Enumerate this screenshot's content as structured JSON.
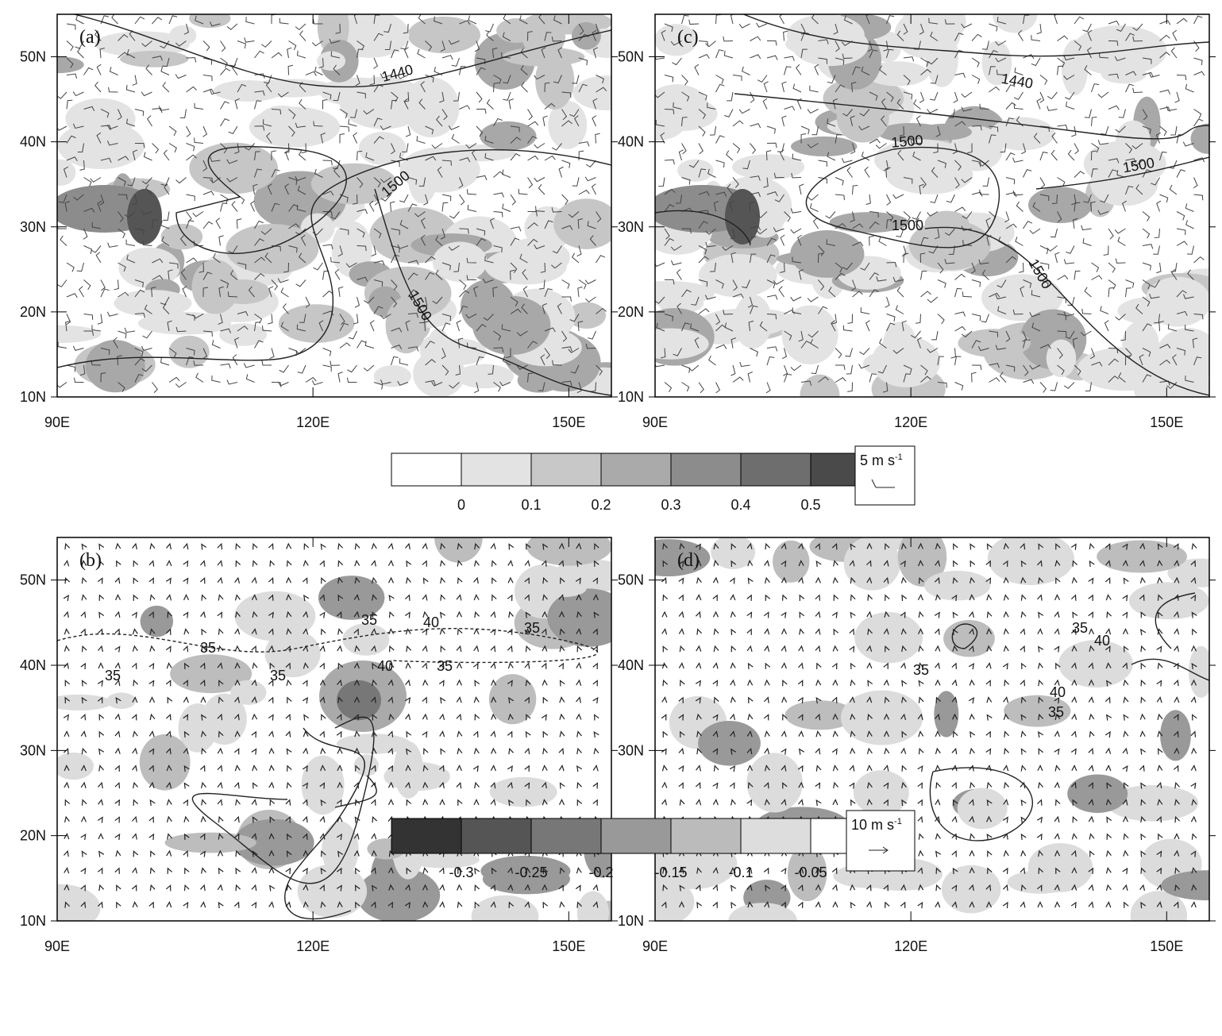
{
  "axes": {
    "xlim": [
      90,
      155
    ],
    "ylim": [
      10,
      55
    ],
    "xticks": [
      {
        "value": 90,
        "label": "90E"
      },
      {
        "value": 120,
        "label": "120E"
      },
      {
        "value": 150,
        "label": "150E"
      }
    ],
    "yticks": [
      {
        "value": 10,
        "label": "10N"
      },
      {
        "value": 20,
        "label": "20N"
      },
      {
        "value": 30,
        "label": "30N"
      },
      {
        "value": 40,
        "label": "40N"
      },
      {
        "value": 50,
        "label": "50N"
      }
    ]
  },
  "panels": [
    {
      "label": "(a)",
      "contour_labels": [
        "1440",
        "1500",
        "1500"
      ]
    },
    {
      "label": "(b)",
      "contour_labels": [
        "35",
        "40",
        "35",
        "35",
        "35",
        "40",
        "35",
        "35"
      ]
    },
    {
      "label": "(c)",
      "contour_labels": [
        "1440",
        "1500",
        "1500",
        "1500",
        "1500"
      ]
    },
    {
      "label": "(d)",
      "contour_labels": [
        "35",
        "40",
        "35",
        "40",
        "35"
      ]
    }
  ],
  "colorbars": [
    {
      "labels": [
        "0",
        "0.1",
        "0.2",
        "0.3",
        "0.4",
        "0.5"
      ],
      "reference": {
        "text": "5 m s",
        "exponent": "-1"
      }
    },
    {
      "labels": [
        "-0.3",
        "-0.25",
        "-0.2",
        "-0.15",
        "-0.1",
        "-0.05"
      ],
      "reference": {
        "text": "10 m s",
        "exponent": "-1"
      }
    }
  ]
}
